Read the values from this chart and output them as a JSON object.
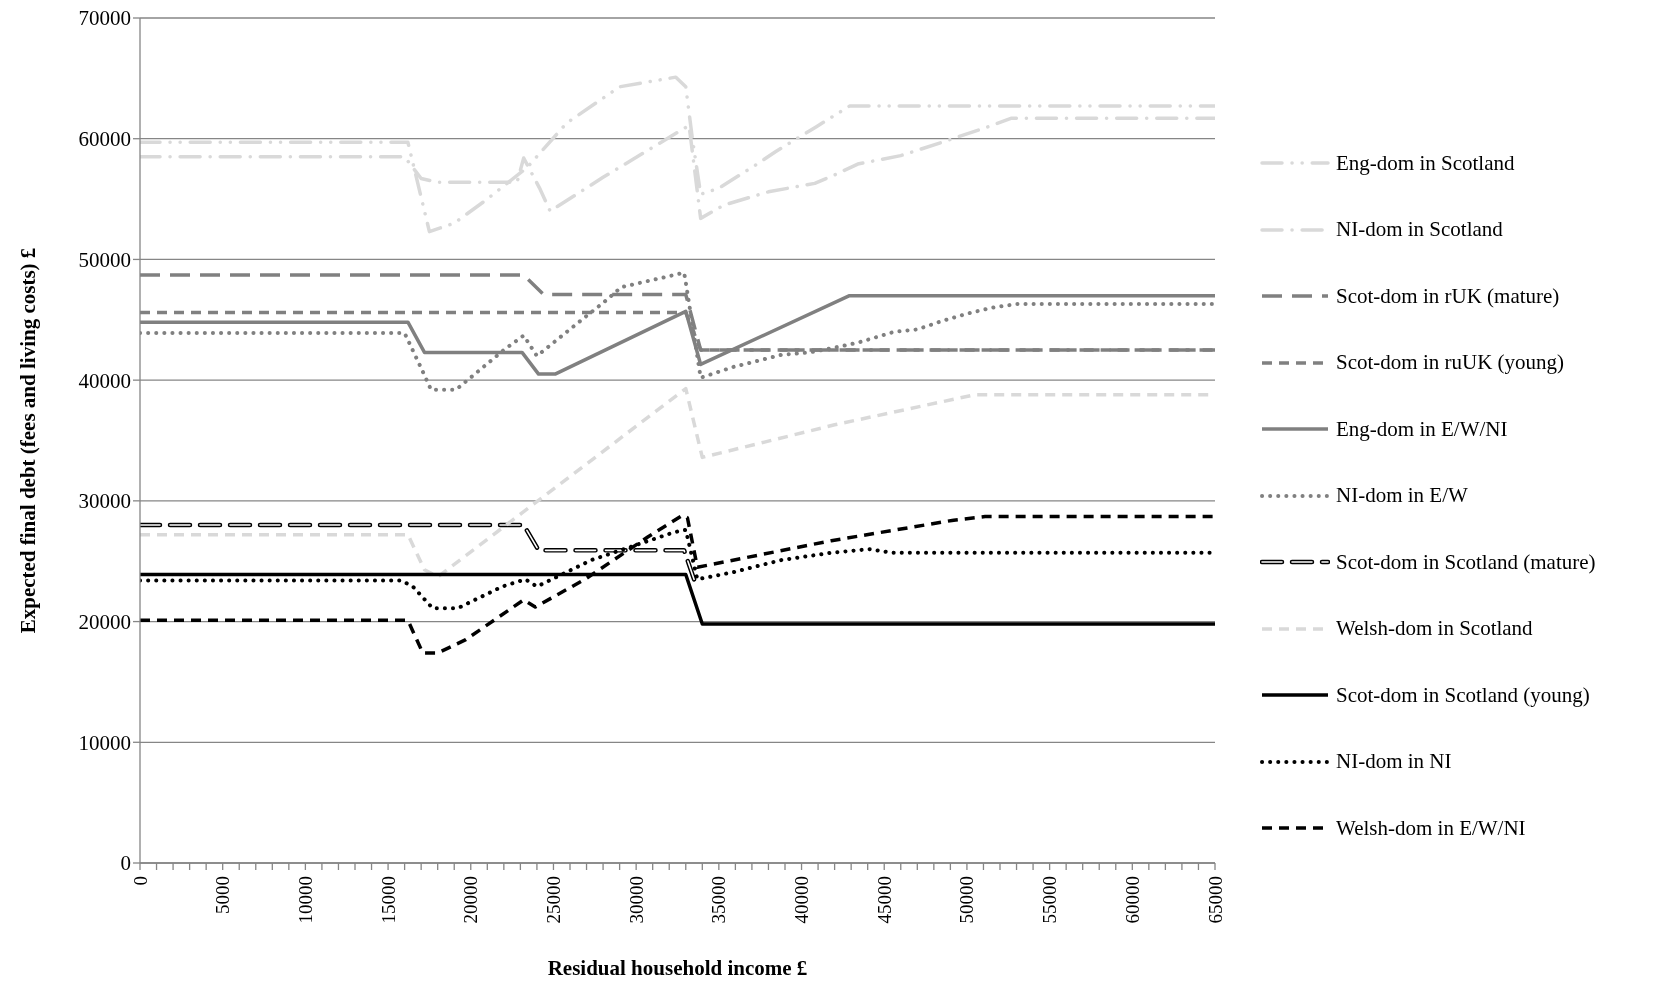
{
  "chart_data": {
    "type": "line",
    "xlabel": "Residual household income £",
    "ylabel": "Expected final debt (fees and living costs) £",
    "xlim": [
      0,
      65000
    ],
    "ylim": [
      0,
      70000
    ],
    "xticks": [
      0,
      {
        "value": 1000,
        "label": null
      },
      {
        "value": 2000,
        "label": null
      },
      {
        "value": 3000,
        "label": null
      },
      {
        "value": 4000,
        "label": null
      },
      5000,
      {
        "value": 6000,
        "label": null
      },
      {
        "value": 7000,
        "label": null
      },
      {
        "value": 8000,
        "label": null
      },
      {
        "value": 9000,
        "label": null
      },
      10000,
      {
        "value": 11000,
        "label": null
      },
      {
        "value": 12000,
        "label": null
      },
      {
        "value": 13000,
        "label": null
      },
      {
        "value": 14000,
        "label": null
      },
      15000,
      {
        "value": 16000,
        "label": null
      },
      {
        "value": 17000,
        "label": null
      },
      {
        "value": 18000,
        "label": null
      },
      {
        "value": 19000,
        "label": null
      },
      20000,
      {
        "value": 21000,
        "label": null
      },
      {
        "value": 22000,
        "label": null
      },
      {
        "value": 23000,
        "label": null
      },
      {
        "value": 24000,
        "label": null
      },
      25000,
      {
        "value": 26000,
        "label": null
      },
      {
        "value": 27000,
        "label": null
      },
      {
        "value": 28000,
        "label": null
      },
      {
        "value": 29000,
        "label": null
      },
      30000,
      {
        "value": 31000,
        "label": null
      },
      {
        "value": 32000,
        "label": null
      },
      {
        "value": 33000,
        "label": null
      },
      {
        "value": 34000,
        "label": null
      },
      35000,
      {
        "value": 36000,
        "label": null
      },
      {
        "value": 37000,
        "label": null
      },
      {
        "value": 38000,
        "label": null
      },
      {
        "value": 39000,
        "label": null
      },
      40000,
      {
        "value": 41000,
        "label": null
      },
      {
        "value": 42000,
        "label": null
      },
      {
        "value": 43000,
        "label": null
      },
      {
        "value": 44000,
        "label": null
      },
      45000,
      {
        "value": 46000,
        "label": null
      },
      {
        "value": 47000,
        "label": null
      },
      {
        "value": 48000,
        "label": null
      },
      {
        "value": 49000,
        "label": null
      },
      50000,
      {
        "value": 51000,
        "label": null
      },
      {
        "value": 52000,
        "label": null
      },
      {
        "value": 53000,
        "label": null
      },
      {
        "value": 54000,
        "label": null
      },
      55000,
      {
        "value": 56000,
        "label": null
      },
      {
        "value": 57000,
        "label": null
      },
      {
        "value": 58000,
        "label": null
      },
      {
        "value": 59000,
        "label": null
      },
      60000,
      {
        "value": 61000,
        "label": null
      },
      {
        "value": 62000,
        "label": null
      },
      {
        "value": 63000,
        "label": null
      },
      {
        "value": 64000,
        "label": null
      },
      65000
    ],
    "yticks": [
      0,
      10000,
      20000,
      30000,
      40000,
      50000,
      60000,
      70000
    ],
    "grid": "y",
    "legend": "right",
    "marker": "none",
    "series": [
      {
        "name": "Eng-dom in Scotland",
        "color": "#d9d9d9",
        "line_style": "dashdotdot",
        "x": [
          0,
          16200,
          17500,
          19000,
          20800,
          23400,
          25800,
          29000,
          32400,
          33000,
          33400,
          33900,
          35000,
          37200,
          38400,
          40900,
          42900,
          65000
        ],
        "values": [
          59700,
          59700,
          52300,
          53000,
          54800,
          57600,
          61300,
          64300,
          65100,
          64300,
          60000,
          55400,
          55900,
          57800,
          58900,
          61000,
          62700,
          62700
        ]
      },
      {
        "name": "NI-dom in Scotland",
        "color": "#d9d9d9",
        "line_style": "dashdot",
        "x": [
          0,
          16000,
          17000,
          18000,
          22800,
          23200,
          24200,
          24800,
          28000,
          33200,
          33900,
          35300,
          38000,
          40800,
          42000,
          43400,
          46000,
          48700,
          51300,
          52700,
          65000
        ],
        "values": [
          58500,
          58500,
          56700,
          56400,
          56400,
          58400,
          55800,
          54000,
          56800,
          61100,
          53400,
          54500,
          55600,
          56300,
          57000,
          57900,
          58600,
          59800,
          61000,
          61700,
          61700
        ]
      },
      {
        "name": "Scot-dom in rUK (mature)",
        "color": "#808080",
        "line_style": "longdash",
        "x": [
          0,
          23200,
          24400,
          33000,
          33900,
          65000
        ],
        "values": [
          48700,
          48700,
          47100,
          47100,
          42500,
          42500
        ]
      },
      {
        "name": "Scot-dom in ruUK (young)",
        "color": "#808080",
        "line_style": "dashed",
        "x": [
          0,
          33000,
          33900,
          65000
        ],
        "values": [
          45600,
          45600,
          42500,
          42500
        ]
      },
      {
        "name": "Eng-dom in E/W/NI",
        "color": "#808080",
        "line_style": "solid",
        "x": [
          0,
          16200,
          17200,
          23100,
          24100,
          25100,
          33000,
          33900,
          42900,
          65000
        ],
        "values": [
          44800,
          44800,
          42300,
          42300,
          40500,
          40500,
          45700,
          41300,
          47000,
          47000
        ]
      },
      {
        "name": "NI-dom in E/W",
        "color": "#808080",
        "line_style": "dotted",
        "x": [
          0,
          16000,
          17000,
          17600,
          19100,
          22000,
          23200,
          24000,
          26800,
          28000,
          29100,
          32900,
          33000,
          33900,
          35900,
          38800,
          40500,
          42000,
          43400,
          45600,
          47000,
          48500,
          50000,
          51500,
          53000,
          65000
        ],
        "values": [
          43900,
          43900,
          41000,
          39200,
          39200,
          42500,
          43700,
          42000,
          45100,
          46400,
          47700,
          48900,
          48100,
          40200,
          41100,
          42100,
          42300,
          42700,
          43100,
          44000,
          44200,
          44900,
          45500,
          46000,
          46300,
          46300
        ]
      },
      {
        "name": "Scot-dom in Scotland (mature)",
        "color": "#000000",
        "line_style": "double",
        "x": [
          0,
          23200,
          24100,
          32900,
          33500
        ],
        "values": [
          28000,
          28000,
          25900,
          25900,
          23500
        ]
      },
      {
        "name": "Welsh-dom in Scotland",
        "color": "#d9d9d9",
        "line_style": "dashed",
        "x": [
          0,
          16200,
          17200,
          18000,
          23100,
          33000,
          34000,
          42000,
          50500,
          65000
        ],
        "values": [
          27200,
          27200,
          24300,
          23700,
          29000,
          39300,
          33600,
          36300,
          38800,
          38800
        ]
      },
      {
        "name": "Scot-dom in Scotland (young)",
        "color": "#000000",
        "line_style": "solid",
        "x": [
          0,
          33000,
          34000,
          65000
        ],
        "values": [
          23900,
          23900,
          19800,
          19800
        ]
      },
      {
        "name": "NI-dom in NI",
        "color": "#000000",
        "line_style": "dotted",
        "x": [
          0,
          15800,
          16500,
          17700,
          19200,
          21900,
          23300,
          24000,
          27300,
          32300,
          33000,
          33700,
          35900,
          38800,
          41800,
          44100,
          45500,
          65000
        ],
        "values": [
          23400,
          23400,
          22900,
          21100,
          21100,
          22900,
          23500,
          22900,
          25100,
          27400,
          27600,
          23500,
          24100,
          25100,
          25700,
          26000,
          25700,
          25700
        ]
      },
      {
        "name": "Welsh-dom in E/W/NI",
        "color": "#000000",
        "line_style": "dashed",
        "x": [
          0,
          16200,
          17100,
          18000,
          19700,
          23200,
          23900,
          26900,
          30700,
          32800,
          33100,
          33700,
          41800,
          49200,
          51100,
          65000
        ],
        "values": [
          20100,
          20100,
          17400,
          17400,
          18500,
          21800,
          21200,
          23500,
          27000,
          28800,
          28600,
          24500,
          26700,
          28400,
          28700,
          28700
        ]
      }
    ]
  }
}
